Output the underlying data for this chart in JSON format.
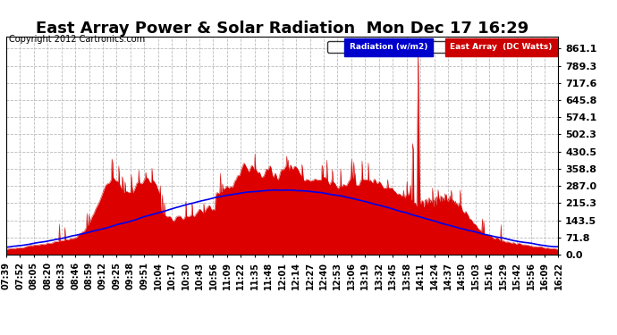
{
  "title": "East Array Power & Solar Radiation  Mon Dec 17 16:29",
  "copyright": "Copyright 2012 Cartronics.com",
  "legend_labels": [
    "Radiation (w/m2)",
    "East Array  (DC Watts)"
  ],
  "legend_colors": [
    "#0000ff",
    "#cc0000"
  ],
  "y_ticks": [
    0.0,
    71.8,
    143.5,
    215.3,
    287.0,
    358.8,
    430.5,
    502.3,
    574.1,
    645.8,
    717.6,
    789.3,
    861.1
  ],
  "ylim": [
    0.0,
    910.0
  ],
  "background_color": "#ffffff",
  "plot_bg_color": "#ffffff",
  "grid_color": "#bbbbbb",
  "x_labels": [
    "07:39",
    "07:52",
    "08:05",
    "08:20",
    "08:33",
    "08:46",
    "08:59",
    "09:12",
    "09:25",
    "09:38",
    "09:51",
    "10:04",
    "10:17",
    "10:30",
    "10:43",
    "10:56",
    "11:09",
    "11:22",
    "11:35",
    "11:48",
    "12:01",
    "12:14",
    "12:27",
    "12:40",
    "12:53",
    "13:06",
    "13:19",
    "13:32",
    "13:45",
    "13:58",
    "14:11",
    "14:24",
    "14:37",
    "14:50",
    "15:03",
    "15:16",
    "15:29",
    "15:42",
    "15:56",
    "16:09",
    "16:22"
  ],
  "title_fontsize": 13,
  "tick_fontsize": 7,
  "copyright_fontsize": 7,
  "ylabel_right_fontsize": 8
}
